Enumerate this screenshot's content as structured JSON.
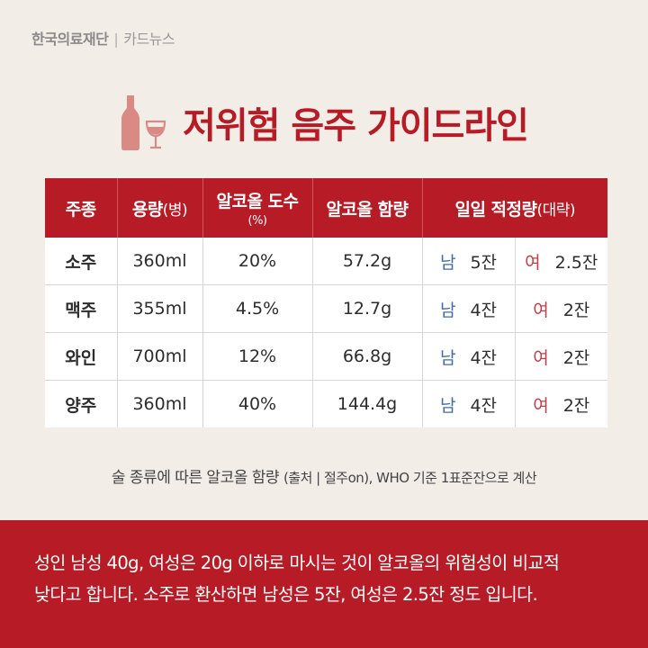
{
  "brand": {
    "org": "한국의료재단",
    "section": "카드뉴스"
  },
  "title": "저위험 음주 가이드라인",
  "table": {
    "headers": {
      "kind": "주종",
      "volume": "용량",
      "volume_unit": "(병)",
      "abv": "알코올 도수",
      "abv_unit": "(%)",
      "content": "알코올 함량",
      "daily": "일일 적정량",
      "daily_note": "(대략)"
    },
    "male_label": "남",
    "female_label": "여",
    "rows": [
      {
        "kind": "소주",
        "volume": "360ml",
        "abv": "20%",
        "content": "57.2g",
        "male": "5잔",
        "female": "2.5잔"
      },
      {
        "kind": "맥주",
        "volume": "355ml",
        "abv": "4.5%",
        "content": "12.7g",
        "male": "4잔",
        "female": "2잔"
      },
      {
        "kind": "와인",
        "volume": "700ml",
        "abv": "12%",
        "content": "66.8g",
        "male": "4잔",
        "female": "2잔"
      },
      {
        "kind": "양주",
        "volume": "360ml",
        "abv": "40%",
        "content": "144.4g",
        "male": "4잔",
        "female": "2잔"
      }
    ]
  },
  "caption": {
    "main": "술 종류에 따른 알코올 함량",
    "note": "(출처 | 절주on), WHO 기준 1표준잔으로 계산"
  },
  "footer": {
    "line1": "성인 남성 40g, 여성은 20g 이하로 마시는 것이 알코올의 위험성이 비교적",
    "line2": "낮다고 합니다. 소주로 환산하면 남성은 5잔, 여성은 2.5잔 정도 입니다."
  },
  "colors": {
    "accent": "#b71c26",
    "background": "#f3ede7",
    "male": "#3d6ea8",
    "female": "#c43c45"
  },
  "icons": [
    "bottle-and-wine-glass-icon"
  ]
}
